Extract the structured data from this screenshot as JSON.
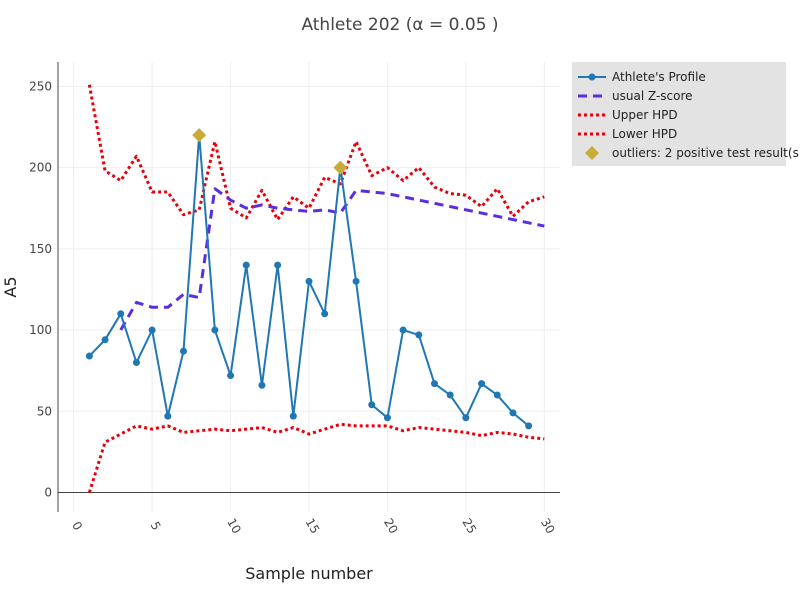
{
  "chart_data": {
    "type": "line",
    "title": "Athlete  202 (α = 0.05 )",
    "xlabel": "Sample number",
    "ylabel": "A5",
    "xlim": [
      -1,
      31
    ],
    "ylim": [
      -12,
      265
    ],
    "xticks": [
      0,
      5,
      10,
      15,
      20,
      25,
      30
    ],
    "yticks": [
      0,
      50,
      100,
      150,
      200,
      250
    ],
    "grid": true,
    "legend_position": "top-right",
    "colors": {
      "profile": "#1f77b4",
      "zscore": "#5a2ee0",
      "hpd": "#e8000b",
      "outliers": "#c9ab3a",
      "legend_bg": "#e3e3e3",
      "grid": "#eeeeee",
      "axis": "#444444"
    },
    "series": [
      {
        "name": "Athlete's Profile",
        "style": "line-markers",
        "x": [
          1,
          2,
          3,
          4,
          5,
          6,
          7,
          8,
          9,
          10,
          11,
          12,
          13,
          14,
          15,
          16,
          17,
          18,
          19,
          20,
          21,
          22,
          23,
          24,
          25,
          26,
          27,
          28,
          29
        ],
        "values": [
          84,
          94,
          110,
          80,
          100,
          47,
          87,
          220,
          100,
          72,
          140,
          66,
          140,
          47,
          130,
          110,
          200,
          130,
          54,
          46,
          100,
          97,
          67,
          60,
          46,
          67,
          60,
          49,
          41
        ]
      },
      {
        "name": "usual Z-score",
        "style": "dash",
        "x": [
          3,
          4,
          5,
          6,
          7,
          8,
          9,
          10,
          11,
          12,
          13,
          14,
          15,
          16,
          17,
          18,
          19,
          20,
          21,
          22,
          23,
          24,
          25,
          26,
          27,
          28,
          29,
          30
        ],
        "values": [
          100,
          117,
          114,
          114,
          122,
          120,
          187,
          180,
          175,
          177,
          175,
          174,
          173,
          174,
          172,
          186,
          185,
          184,
          182,
          180,
          178,
          176,
          174,
          172,
          170,
          168,
          166,
          164
        ]
      },
      {
        "name": "Upper HPD",
        "style": "dot",
        "x": [
          1,
          2,
          3,
          4,
          5,
          6,
          7,
          8,
          9,
          10,
          11,
          12,
          13,
          14,
          15,
          16,
          17,
          18,
          19,
          20,
          21,
          22,
          23,
          24,
          25,
          26,
          27,
          28,
          29,
          30
        ],
        "values": [
          251,
          198,
          192,
          207,
          185,
          185,
          171,
          174,
          216,
          175,
          169,
          186,
          168,
          182,
          175,
          194,
          190,
          216,
          195,
          200,
          192,
          200,
          188,
          184,
          183,
          176,
          187,
          170,
          179,
          182
        ]
      },
      {
        "name": "Lower HPD",
        "style": "dot",
        "x": [
          1,
          2,
          3,
          4,
          5,
          6,
          7,
          8,
          9,
          10,
          11,
          12,
          13,
          14,
          15,
          16,
          17,
          18,
          19,
          20,
          21,
          22,
          23,
          24,
          25,
          26,
          27,
          28,
          29,
          30
        ],
        "values": [
          0,
          31,
          36,
          41,
          39,
          41,
          37,
          38,
          39,
          38,
          39,
          40,
          37,
          40,
          36,
          39,
          42,
          41,
          41,
          41,
          38,
          40,
          39,
          38,
          37,
          35,
          37,
          36,
          34,
          33
        ]
      },
      {
        "name": "outliers:  2 positive test result(s)",
        "style": "markers",
        "x": [
          8,
          17
        ],
        "values": [
          220,
          200
        ]
      }
    ]
  }
}
